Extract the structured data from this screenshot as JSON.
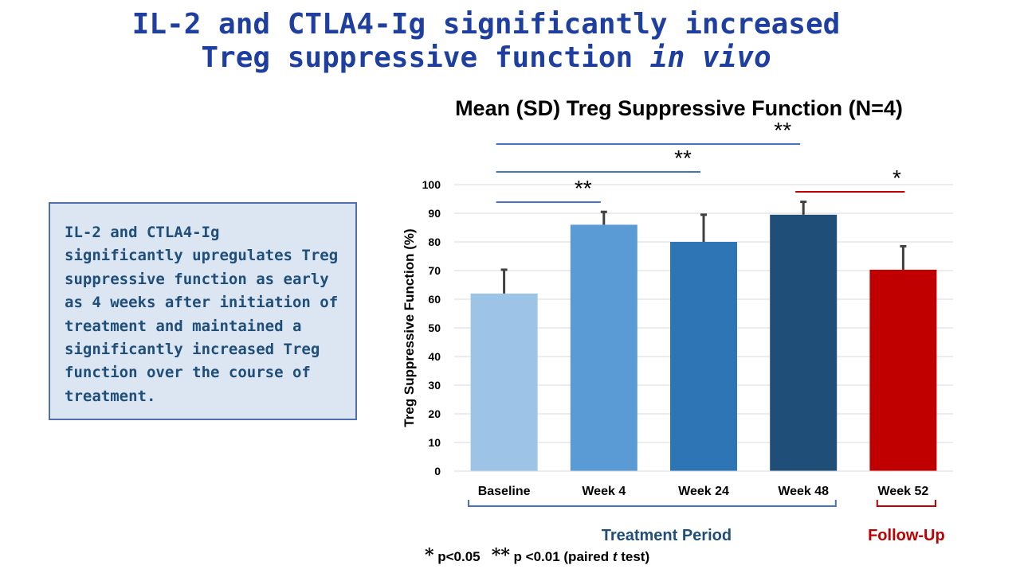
{
  "slide": {
    "title_line1": "IL-2 and CTLA4-Ig significantly increased",
    "title_line2_a": "Treg suppressive function ",
    "title_line2_b": "in vivo",
    "summary": "IL-2 and CTLA4-Ig significantly upregulates Treg suppressive function as early as 4 weeks after initiation of treatment and maintained a significantly increased Treg function over the course of treatment.",
    "footnote_star1": "*",
    "footnote_p1": " p<0.05",
    "footnote_star2": "**",
    "footnote_p2a": " p <0.01 (paired ",
    "footnote_t": "t",
    "footnote_p2b": " test)"
  },
  "chart_data": {
    "type": "bar",
    "title": "Mean (SD) Treg Suppressive Function (N=4)",
    "xlabel": "",
    "ylabel": "Treg Suppressive Function (%)",
    "ylim": [
      0,
      100
    ],
    "yticks": [
      0,
      10,
      20,
      30,
      40,
      50,
      60,
      70,
      80,
      90,
      100
    ],
    "grid": true,
    "categories": [
      "Baseline",
      "Week 4",
      "Week 24",
      "Week 48",
      "Week 52"
    ],
    "values": [
      62,
      86,
      80,
      89.5,
      70.3
    ],
    "error_sd": [
      8.3,
      4.5,
      9.5,
      4.5,
      8.2
    ],
    "colors": [
      "#9dc3e6",
      "#5b9bd5",
      "#2e75b6",
      "#1f4e79",
      "#c00000"
    ],
    "significance": [
      {
        "from": "Baseline",
        "to": "Week 4",
        "label": "**",
        "color": "#4472c4"
      },
      {
        "from": "Baseline",
        "to": "Week 24",
        "label": "**",
        "color": "#4472c4"
      },
      {
        "from": "Baseline",
        "to": "Week 48",
        "label": "**",
        "color": "#4472c4"
      },
      {
        "from": "Week 48",
        "to": "Week 52",
        "label": "*",
        "color": "#c00000"
      }
    ],
    "groups": [
      {
        "label": "Treatment Period",
        "from": "Baseline",
        "to": "Week 48",
        "color": "#1f4e79"
      },
      {
        "label": "Follow-Up",
        "from": "Week 52",
        "to": "Week 52",
        "color": "#c00000"
      }
    ]
  }
}
